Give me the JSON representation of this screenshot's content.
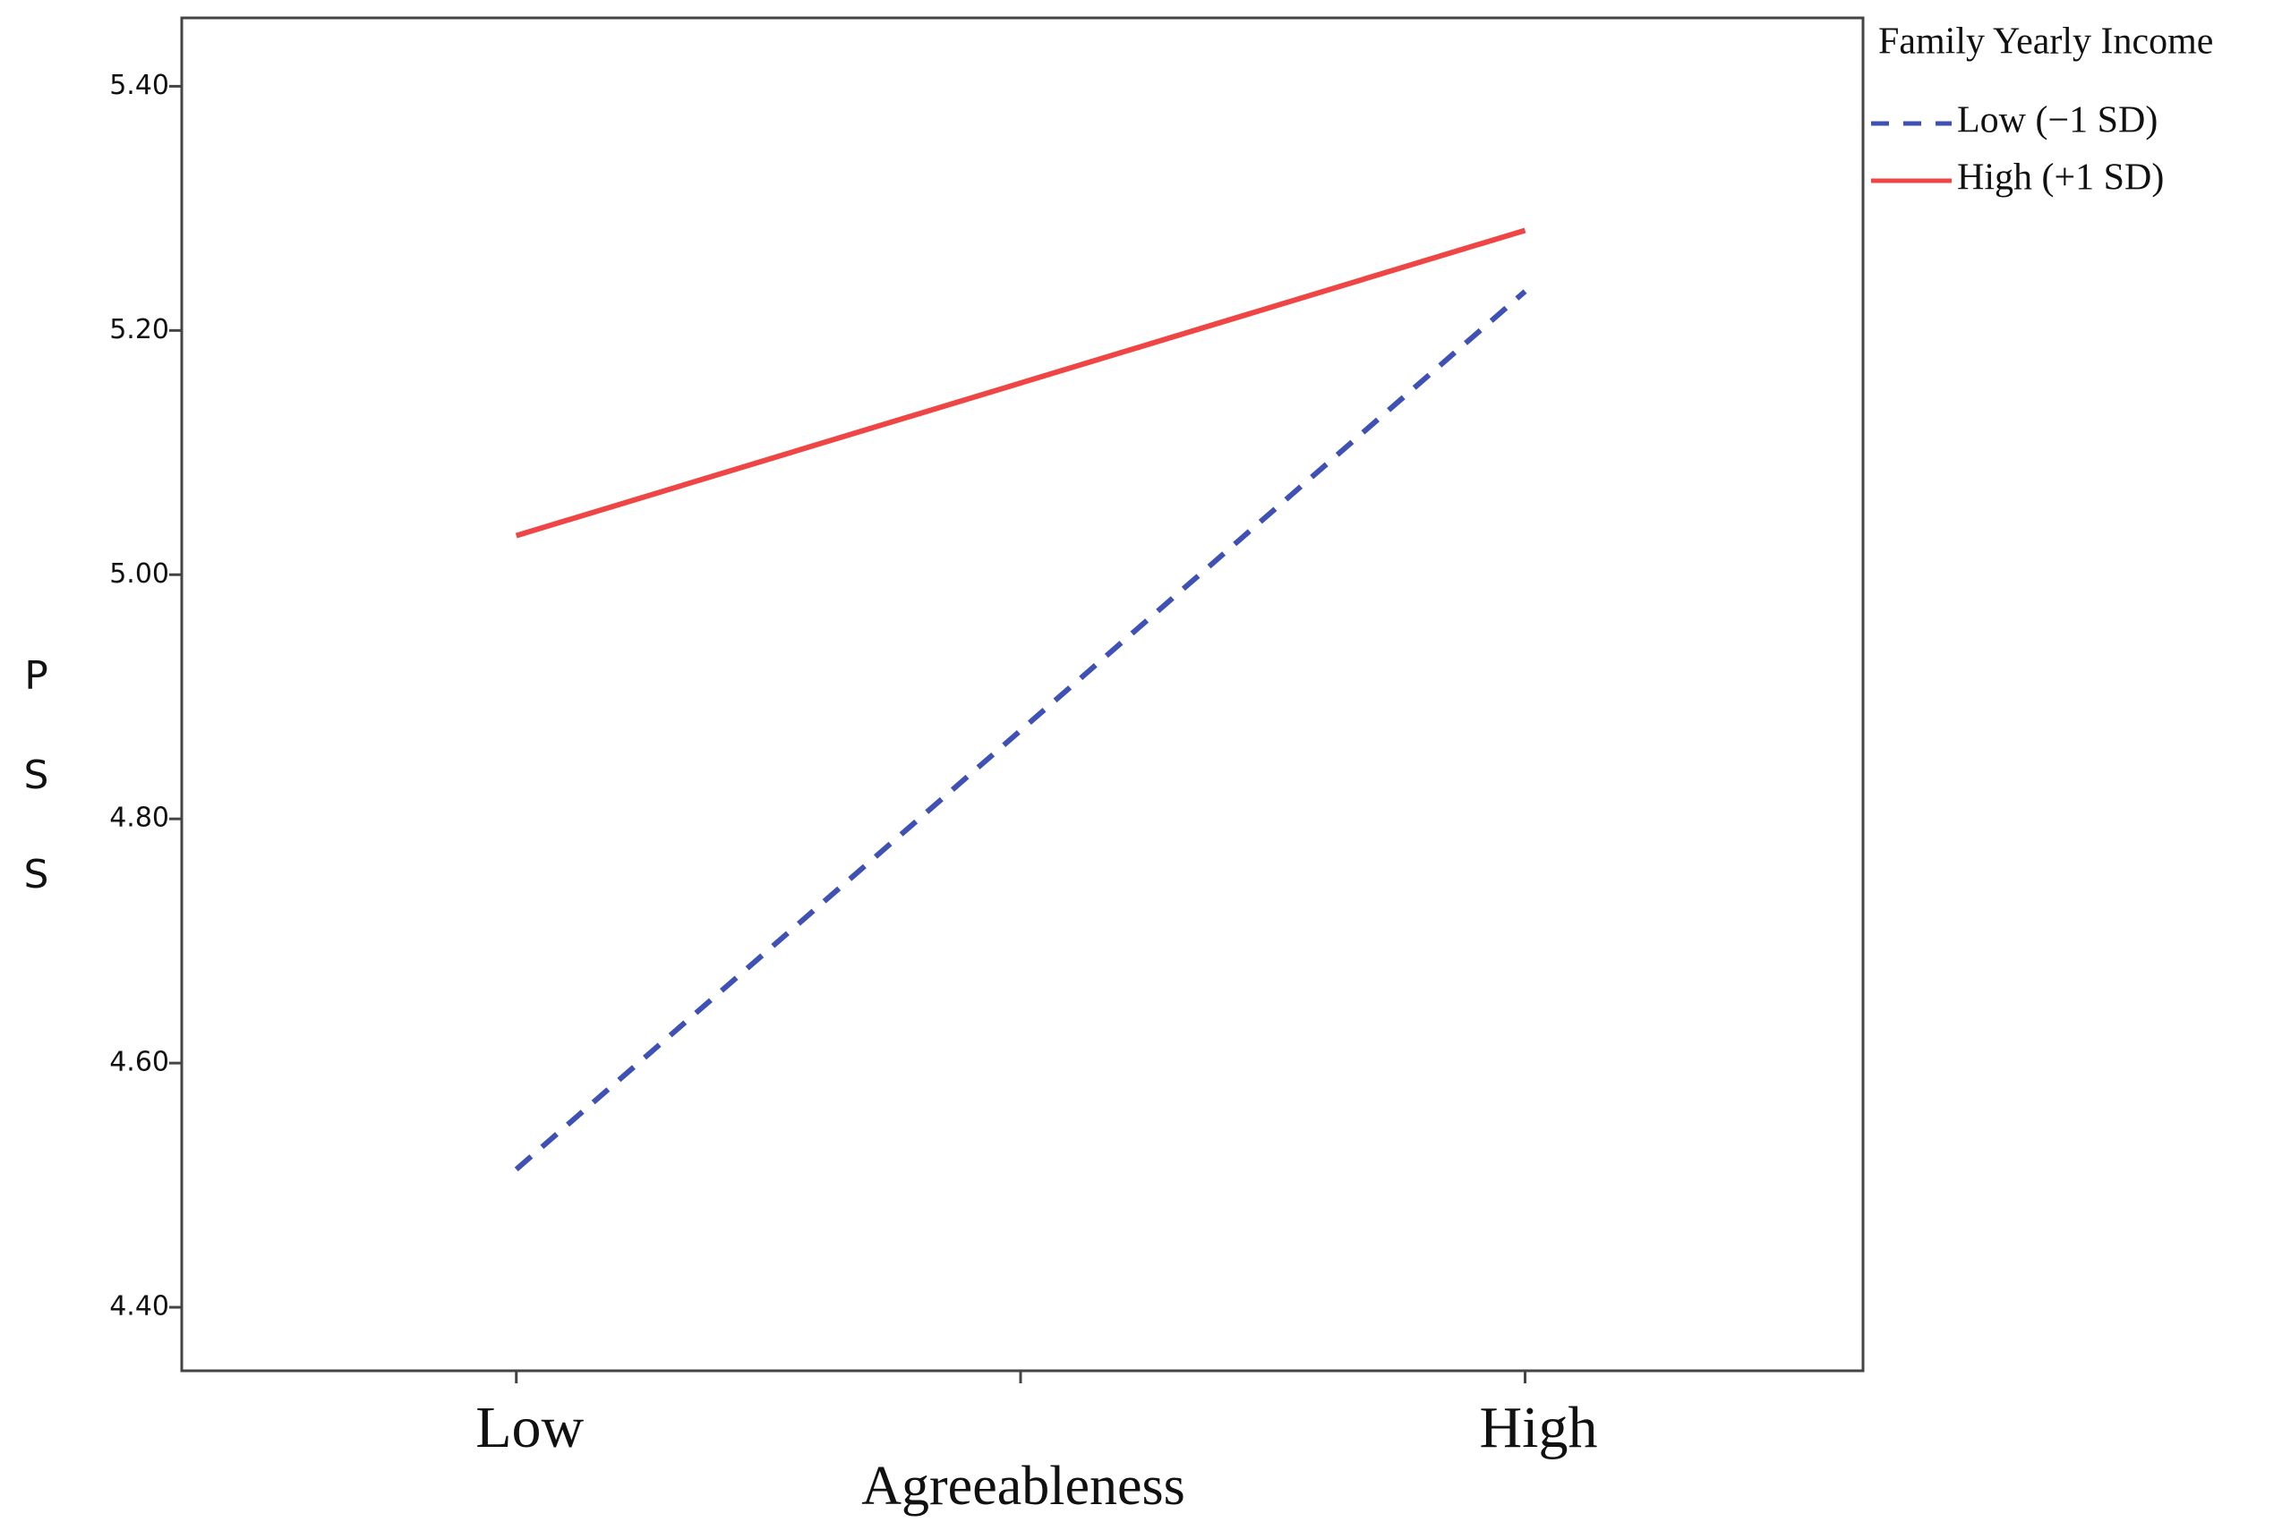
{
  "chart_data": {
    "type": "line",
    "x_label": "Agreeableness",
    "y_label": "PSS",
    "categories": [
      "Low",
      "High"
    ],
    "ylim": [
      4.348,
      5.456
    ],
    "yticks": [
      {
        "value": 4.4,
        "label": "4.40"
      },
      {
        "value": 4.6,
        "label": "4.60"
      },
      {
        "value": 4.8,
        "label": "4.80"
      },
      {
        "value": 5.0,
        "label": "5.00"
      },
      {
        "value": 5.2,
        "label": "5.20"
      },
      {
        "value": 5.4,
        "label": "5.40"
      }
    ],
    "legend_title": "Family Yearly Income",
    "legend_position": "outside-right",
    "series": [
      {
        "name": "Low (−1 SD)",
        "color": "#3f51b5",
        "dashed": true,
        "values": [
          4.513,
          5.232
        ]
      },
      {
        "name": "High (+1 SD)",
        "color": "#f04545",
        "dashed": false,
        "values": [
          5.032,
          5.282
        ]
      }
    ]
  }
}
